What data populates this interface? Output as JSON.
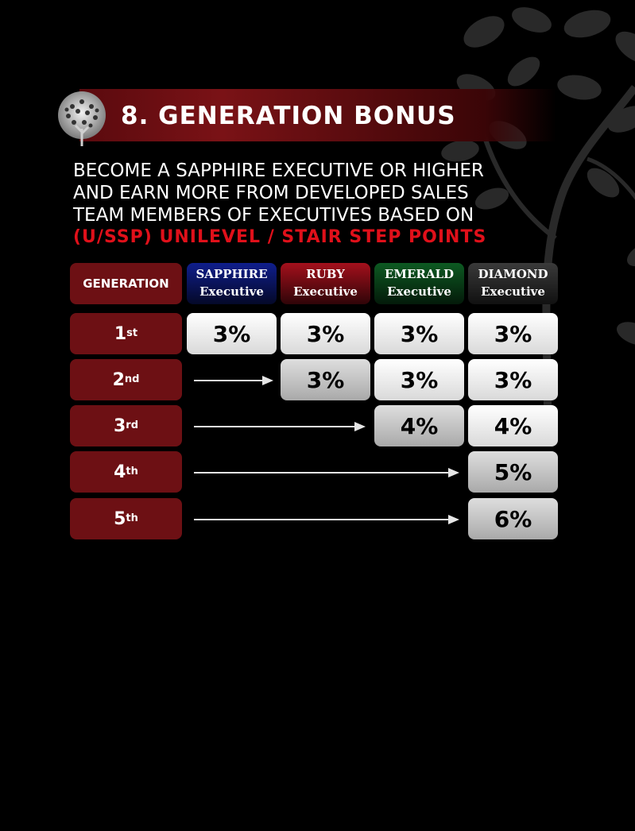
{
  "header": {
    "title": "8. GENERATION BONUS"
  },
  "description": {
    "lines": [
      "BECOME A SAPPHIRE EXECUTIVE OR HIGHER",
      "AND EARN MORE FROM DEVELOPED SALES",
      "TEAM MEMBERS OF EXECUTIVES BASED ON"
    ],
    "highlight": "(U/SSP) UNILEVEL / STAIR STEP POINTS"
  },
  "table": {
    "generation_header": "GENERATION",
    "ranks": [
      {
        "name": "SAPPHIRE",
        "sub": "Executive",
        "color": "#0f1e8c"
      },
      {
        "name": "RUBY",
        "sub": "Executive",
        "color": "#a4101c"
      },
      {
        "name": "EMERALD",
        "sub": "Executive",
        "color": "#0d5a22"
      },
      {
        "name": "DIAMOND",
        "sub": "Executive",
        "color": "#3a3a3a"
      }
    ],
    "rows": [
      {
        "num": "1",
        "suffix": "st",
        "values": [
          "3%",
          "3%",
          "3%",
          "3%"
        ]
      },
      {
        "num": "2",
        "suffix": "nd",
        "values": [
          "3%",
          "3%",
          "3%"
        ]
      },
      {
        "num": "3",
        "suffix": "rd",
        "values": [
          "4%",
          "4%"
        ]
      },
      {
        "num": "4",
        "suffix": "th",
        "values": [
          "5%"
        ]
      },
      {
        "num": "5",
        "suffix": "th",
        "values": [
          "6%"
        ]
      }
    ]
  },
  "colors": {
    "generation_cell": "#6d1014",
    "highlight_text": "#e0101a"
  }
}
